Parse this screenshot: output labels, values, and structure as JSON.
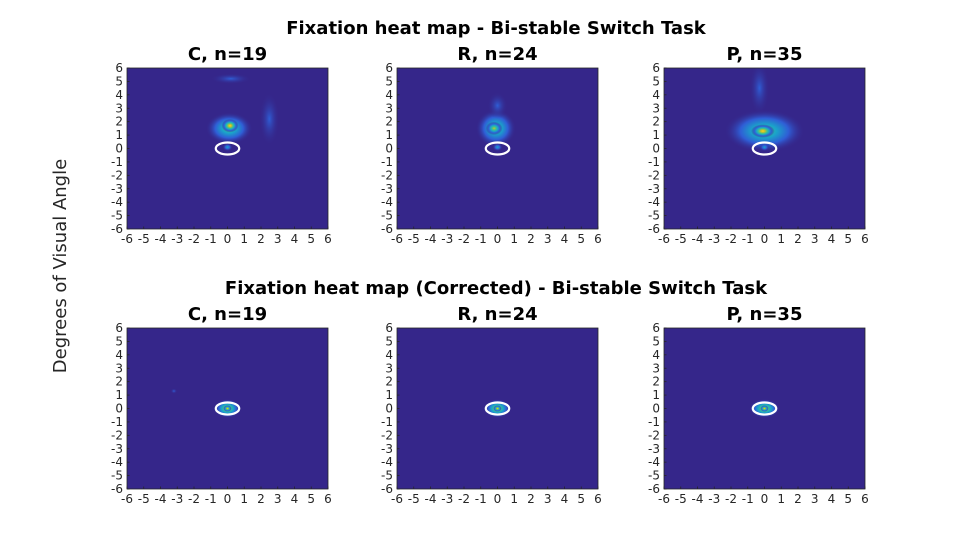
{
  "figure": {
    "ylabel": "Degrees of Visual Angle"
  },
  "colors": {
    "background": "#35268a",
    "circle": "#ffffff",
    "colormap": [
      "#35268a",
      "#2f5ed6",
      "#1aa4c9",
      "#43c48a",
      "#c6bf2c",
      "#f9d91f"
    ]
  },
  "chart_data": [
    {
      "type": "heatmap",
      "row": 0,
      "section_title": "Fixation heat map - Bi-stable Switch Task",
      "title": "C, n=19",
      "xlim": [
        -6,
        6
      ],
      "ylim": [
        -6,
        6
      ],
      "xticks": [
        "-6",
        "-5",
        "-4",
        "-3",
        "-2",
        "-1",
        "0",
        "1",
        "2",
        "3",
        "4",
        "5",
        "6"
      ],
      "yticks": [
        "6",
        "5",
        "4",
        "3",
        "2",
        "1",
        "0",
        "-1",
        "-2",
        "-3",
        "-4",
        "-5",
        "-6"
      ],
      "reference_circle": {
        "center": [
          0,
          0
        ],
        "rx": 0.7,
        "ry": 0.45
      },
      "hotspots": [
        {
          "x": 0.1,
          "y": 1.5,
          "sx": 0.7,
          "sy": 0.6,
          "intensity": 0.6
        },
        {
          "x": 0.15,
          "y": 1.7,
          "sx": 0.25,
          "sy": 0.25,
          "intensity": 0.9
        },
        {
          "x": 0.2,
          "y": 5.2,
          "sx": 0.6,
          "sy": 0.2,
          "intensity": 0.25
        },
        {
          "x": 0.0,
          "y": 0.1,
          "sx": 0.15,
          "sy": 0.15,
          "intensity": 0.45
        },
        {
          "x": 2.5,
          "y": 2.2,
          "sx": 0.3,
          "sy": 1.0,
          "intensity": 0.15
        }
      ]
    },
    {
      "type": "heatmap",
      "row": 0,
      "title": "R, n=24",
      "xlim": [
        -6,
        6
      ],
      "ylim": [
        -6,
        6
      ],
      "xticks": [
        "-6",
        "-5",
        "-4",
        "-3",
        "-2",
        "-1",
        "0",
        "1",
        "2",
        "3",
        "4",
        "5",
        "6"
      ],
      "yticks": [
        "6",
        "5",
        "4",
        "3",
        "2",
        "1",
        "0",
        "-1",
        "-2",
        "-3",
        "-4",
        "-5",
        "-6"
      ],
      "reference_circle": {
        "center": [
          0,
          0
        ],
        "rx": 0.7,
        "ry": 0.45
      },
      "hotspots": [
        {
          "x": -0.1,
          "y": 1.5,
          "sx": 0.6,
          "sy": 0.7,
          "intensity": 0.55
        },
        {
          "x": -0.2,
          "y": 1.5,
          "sx": 0.25,
          "sy": 0.25,
          "intensity": 0.85
        },
        {
          "x": 0.0,
          "y": 3.2,
          "sx": 0.3,
          "sy": 0.5,
          "intensity": 0.2
        },
        {
          "x": 0.0,
          "y": 0.1,
          "sx": 0.15,
          "sy": 0.15,
          "intensity": 0.45
        }
      ]
    },
    {
      "type": "heatmap",
      "row": 0,
      "title": "P, n=35",
      "xlim": [
        -6,
        6
      ],
      "ylim": [
        -6,
        6
      ],
      "xticks": [
        "-6",
        "-5",
        "-4",
        "-3",
        "-2",
        "-1",
        "0",
        "1",
        "2",
        "3",
        "4",
        "5",
        "6"
      ],
      "yticks": [
        "6",
        "5",
        "4",
        "3",
        "2",
        "1",
        "0",
        "-1",
        "-2",
        "-3",
        "-4",
        "-5",
        "-6"
      ],
      "reference_circle": {
        "center": [
          0,
          0
        ],
        "rx": 0.7,
        "ry": 0.45
      },
      "hotspots": [
        {
          "x": 0.0,
          "y": 1.3,
          "sx": 1.2,
          "sy": 0.8,
          "intensity": 0.55
        },
        {
          "x": -0.1,
          "y": 1.3,
          "sx": 0.35,
          "sy": 0.25,
          "intensity": 0.95
        },
        {
          "x": -0.3,
          "y": 4.5,
          "sx": 0.3,
          "sy": 1.0,
          "intensity": 0.2
        },
        {
          "x": 0.0,
          "y": 0.1,
          "sx": 0.15,
          "sy": 0.15,
          "intensity": 0.45
        }
      ]
    },
    {
      "type": "heatmap",
      "row": 1,
      "section_title": "Fixation heat map (Corrected) - Bi-stable Switch Task",
      "title": "C, n=19",
      "xlim": [
        -6,
        6
      ],
      "ylim": [
        -6,
        6
      ],
      "xticks": [
        "-6",
        "-5",
        "-4",
        "-3",
        "-2",
        "-1",
        "0",
        "1",
        "2",
        "3",
        "4",
        "5",
        "6"
      ],
      "yticks": [
        "6",
        "5",
        "4",
        "3",
        "2",
        "1",
        "0",
        "-1",
        "-2",
        "-3",
        "-4",
        "-5",
        "-6"
      ],
      "reference_circle": {
        "center": [
          0,
          0
        ],
        "rx": 0.7,
        "ry": 0.45
      },
      "hotspots": [
        {
          "x": 0.0,
          "y": 0.0,
          "sx": 0.4,
          "sy": 0.35,
          "intensity": 0.7
        },
        {
          "x": 0.0,
          "y": 0.0,
          "sx": 0.12,
          "sy": 0.12,
          "intensity": 1.0
        },
        {
          "x": -3.2,
          "y": 1.3,
          "sx": 0.1,
          "sy": 0.1,
          "intensity": 0.15
        }
      ]
    },
    {
      "type": "heatmap",
      "row": 1,
      "title": "R, n=24",
      "xlim": [
        -6,
        6
      ],
      "ylim": [
        -6,
        6
      ],
      "xticks": [
        "-6",
        "-5",
        "-4",
        "-3",
        "-2",
        "-1",
        "0",
        "1",
        "2",
        "3",
        "4",
        "5",
        "6"
      ],
      "yticks": [
        "6",
        "5",
        "4",
        "3",
        "2",
        "1",
        "0",
        "-1",
        "-2",
        "-3",
        "-4",
        "-5",
        "-6"
      ],
      "reference_circle": {
        "center": [
          0,
          0
        ],
        "rx": 0.7,
        "ry": 0.45
      },
      "hotspots": [
        {
          "x": 0.0,
          "y": 0.0,
          "sx": 0.4,
          "sy": 0.35,
          "intensity": 0.7
        },
        {
          "x": 0.0,
          "y": 0.0,
          "sx": 0.12,
          "sy": 0.12,
          "intensity": 1.0
        }
      ]
    },
    {
      "type": "heatmap",
      "row": 1,
      "title": "P, n=35",
      "xlim": [
        -6,
        6
      ],
      "ylim": [
        -6,
        6
      ],
      "xticks": [
        "-6",
        "-5",
        "-4",
        "-3",
        "-2",
        "-1",
        "0",
        "1",
        "2",
        "3",
        "4",
        "5",
        "6"
      ],
      "yticks": [
        "6",
        "5",
        "4",
        "3",
        "2",
        "1",
        "0",
        "-1",
        "-2",
        "-3",
        "-4",
        "-5",
        "-6"
      ],
      "reference_circle": {
        "center": [
          0,
          0
        ],
        "rx": 0.7,
        "ry": 0.45
      },
      "hotspots": [
        {
          "x": 0.0,
          "y": 0.0,
          "sx": 0.45,
          "sy": 0.35,
          "intensity": 0.7
        },
        {
          "x": 0.0,
          "y": 0.0,
          "sx": 0.12,
          "sy": 0.12,
          "intensity": 1.0
        }
      ]
    }
  ]
}
